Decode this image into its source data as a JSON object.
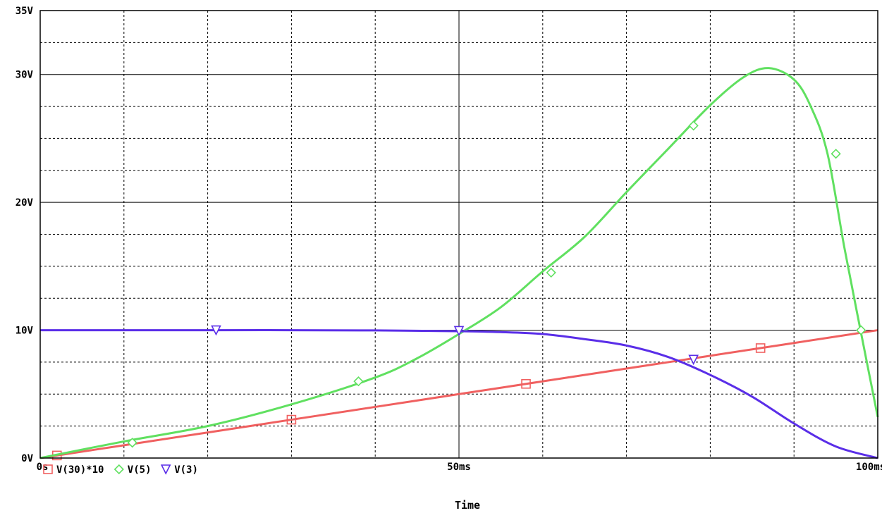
{
  "chart_data": {
    "type": "line",
    "xlabel": "Time",
    "ylabel": "",
    "xlim": [
      0,
      100
    ],
    "ylim": [
      0,
      35
    ],
    "x_ticks": [
      {
        "v": 0,
        "label": "0s"
      },
      {
        "v": 50,
        "label": "50ms"
      },
      {
        "v": 100,
        "label": "100ms"
      }
    ],
    "y_ticks": [
      {
        "v": 0,
        "label": "0V"
      },
      {
        "v": 10,
        "label": "10V"
      },
      {
        "v": 20,
        "label": "20V"
      },
      {
        "v": 30,
        "label": "30V"
      },
      {
        "v": 35,
        "label": "35V"
      }
    ],
    "grid": true,
    "legend_position": "bottom-left",
    "series": [
      {
        "name": "V(30)*10",
        "color": "#f06060",
        "marker": "square",
        "x": [
          0,
          10,
          20,
          30,
          40,
          50,
          60,
          70,
          80,
          90,
          100
        ],
        "y": [
          0,
          1,
          2,
          3,
          4,
          5,
          6,
          7,
          8,
          9,
          10
        ],
        "marker_x": [
          2,
          30,
          58,
          86
        ],
        "marker_y": [
          0.2,
          3.0,
          5.8,
          8.6
        ]
      },
      {
        "name": "V(5)",
        "color": "#60e060",
        "marker": "diamond",
        "x": [
          0,
          10,
          20,
          30,
          40,
          45,
          50,
          55,
          60,
          65,
          70,
          75,
          80,
          84,
          87,
          90,
          92,
          94,
          96,
          98,
          100
        ],
        "y": [
          0,
          1.3,
          2.5,
          4.2,
          6.3,
          7.8,
          9.7,
          11.8,
          14.6,
          17.3,
          20.8,
          24.2,
          27.6,
          29.8,
          30.5,
          29.6,
          27.5,
          23.8,
          16.5,
          9.8,
          3.2
        ],
        "marker_x": [
          11,
          38,
          61,
          78,
          95,
          98
        ],
        "marker_y": [
          1.2,
          6.0,
          14.5,
          26.0,
          23.8,
          10.0
        ]
      },
      {
        "name": "V(3)",
        "color": "#5a2ee8",
        "marker": "triangle-down",
        "x": [
          0,
          10,
          20,
          30,
          40,
          50,
          55,
          60,
          65,
          70,
          75,
          80,
          85,
          90,
          95,
          100
        ],
        "y": [
          10,
          10,
          10,
          10,
          9.98,
          9.92,
          9.85,
          9.7,
          9.3,
          8.8,
          7.9,
          6.5,
          4.8,
          2.7,
          0.9,
          0
        ],
        "marker_x": [
          21,
          50,
          78
        ],
        "marker_y": [
          10,
          9.95,
          7.7
        ]
      }
    ]
  }
}
